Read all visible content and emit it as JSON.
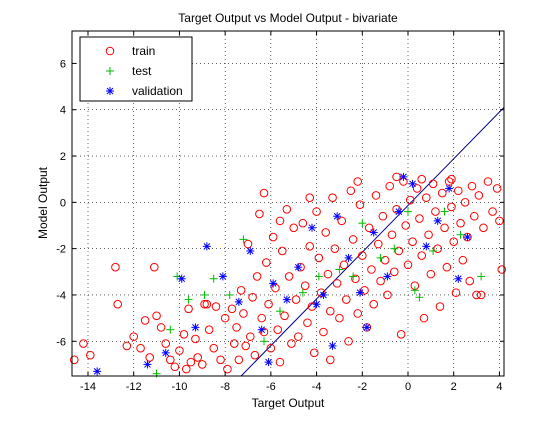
{
  "chart_data": {
    "type": "scatter",
    "title": "Target Output vs Model Output - bivariate",
    "xlabel": "Target Output",
    "ylabel": "Model Output",
    "xlim": [
      -14.7,
      4.2
    ],
    "ylim": [
      -7.5,
      7.4
    ],
    "x_ticks": [
      -14,
      -12,
      -10,
      -8,
      -6,
      -4,
      -2,
      0,
      2,
      4
    ],
    "y_ticks": [
      -6,
      -4,
      -2,
      0,
      2,
      4,
      6
    ],
    "x_tick_labels": [
      "-14",
      "-12",
      "-10",
      "-8",
      "-6",
      "-4",
      "-2",
      "0",
      "2",
      "4"
    ],
    "y_tick_labels": [
      "-6",
      "-4",
      "-2",
      "0",
      "2",
      "4",
      "6"
    ],
    "grid": true,
    "grid_style": "dotted",
    "legend_position": "top-left",
    "reference_line": {
      "from": [
        -7.3,
        -7.5
      ],
      "to": [
        4.2,
        4.1
      ],
      "color": "#00008b"
    },
    "series": [
      {
        "name": "train",
        "marker": "circle",
        "color": "#ff0000",
        "points": [
          [
            -14.6,
            -6.8
          ],
          [
            -14.2,
            -6.1
          ],
          [
            -13.9,
            -6.6
          ],
          [
            -12.8,
            -2.8
          ],
          [
            -12.7,
            -4.4
          ],
          [
            -12.3,
            -6.2
          ],
          [
            -12.0,
            -5.8
          ],
          [
            -11.7,
            -6.3
          ],
          [
            -11.5,
            -5.1
          ],
          [
            -11.3,
            -6.7
          ],
          [
            -11.1,
            -2.8
          ],
          [
            -11.0,
            -4.9
          ],
          [
            -10.8,
            -5.4
          ],
          [
            -10.6,
            -6.1
          ],
          [
            -10.4,
            -6.8
          ],
          [
            -10.2,
            -7.1
          ],
          [
            -10.0,
            -6.4
          ],
          [
            -9.8,
            -5.7
          ],
          [
            -9.7,
            -7.2
          ],
          [
            -9.5,
            -6.9
          ],
          [
            -9.3,
            -5.9
          ],
          [
            -9.2,
            -6.7
          ],
          [
            -9.0,
            -7.0
          ],
          [
            -8.8,
            -4.4
          ],
          [
            -8.7,
            -5.5
          ],
          [
            -8.5,
            -6.3
          ],
          [
            -8.4,
            -4.5
          ],
          [
            -8.2,
            -6.8
          ],
          [
            -8.0,
            -5.0
          ],
          [
            -7.9,
            -7.2
          ],
          [
            -7.7,
            -4.6
          ],
          [
            -7.6,
            -6.1
          ],
          [
            -7.5,
            -5.4
          ],
          [
            -7.4,
            -6.8
          ],
          [
            -7.3,
            -3.8
          ],
          [
            -7.2,
            -4.8
          ],
          [
            -7.1,
            -6.2
          ],
          [
            -7.0,
            -1.8
          ],
          [
            -6.9,
            -5.8
          ],
          [
            -6.8,
            -4.1
          ],
          [
            -6.7,
            -6.6
          ],
          [
            -6.6,
            -3.2
          ],
          [
            -6.5,
            -0.5
          ],
          [
            -6.4,
            -5.0
          ],
          [
            -6.3,
            0.4
          ],
          [
            -6.2,
            -2.6
          ],
          [
            -6.1,
            -4.4
          ],
          [
            -6.0,
            -6.3
          ],
          [
            -5.9,
            -1.5
          ],
          [
            -5.8,
            -3.7
          ],
          [
            -5.7,
            -5.5
          ],
          [
            -5.6,
            -6.9
          ],
          [
            -5.5,
            -2.1
          ],
          [
            -5.4,
            -4.9
          ],
          [
            -5.3,
            -0.3
          ],
          [
            -5.2,
            -3.2
          ],
          [
            -5.1,
            -6.1
          ],
          [
            -5.0,
            -1.1
          ],
          [
            -4.9,
            -4.2
          ],
          [
            -4.8,
            -5.8
          ],
          [
            -4.7,
            -2.8
          ],
          [
            -4.6,
            -0.9
          ],
          [
            -4.5,
            -3.6
          ],
          [
            -4.4,
            -5.2
          ],
          [
            -4.3,
            -1.9
          ],
          [
            -4.2,
            -4.5
          ],
          [
            -4.1,
            -6.5
          ],
          [
            -4.0,
            -0.4
          ],
          [
            -3.9,
            -2.4
          ],
          [
            -3.8,
            -3.9
          ],
          [
            -3.7,
            -5.6
          ],
          [
            -3.6,
            -1.3
          ],
          [
            -3.5,
            -3.1
          ],
          [
            -3.4,
            -4.7
          ],
          [
            -3.3,
            0.2
          ],
          [
            -3.2,
            -2.0
          ],
          [
            -3.1,
            -3.5
          ],
          [
            -3.0,
            -5.0
          ],
          [
            -2.9,
            -0.8
          ],
          [
            -2.8,
            -2.7
          ],
          [
            -2.7,
            -4.2
          ],
          [
            -2.6,
            -6.0
          ],
          [
            -2.5,
            0.5
          ],
          [
            -2.4,
            -1.6
          ],
          [
            -2.3,
            -3.3
          ],
          [
            -2.2,
            -4.8
          ],
          [
            -2.1,
            -0.1
          ],
          [
            -2.0,
            -2.3
          ],
          [
            -1.9,
            -3.8
          ],
          [
            -1.8,
            -5.4
          ],
          [
            -1.7,
            -1.1
          ],
          [
            -1.6,
            -2.9
          ],
          [
            -1.5,
            -4.4
          ],
          [
            -1.4,
            0.3
          ],
          [
            -1.3,
            -1.8
          ],
          [
            -1.2,
            -3.4
          ],
          [
            -1.1,
            -0.6
          ],
          [
            -1.0,
            -2.5
          ],
          [
            -0.9,
            -4.0
          ],
          [
            -0.8,
            0.7
          ],
          [
            -0.7,
            -1.4
          ],
          [
            -0.6,
            -3.0
          ],
          [
            -0.5,
            -0.3
          ],
          [
            -0.4,
            -2.1
          ],
          [
            -0.3,
            -5.7
          ],
          [
            -0.2,
            0.9
          ],
          [
            -0.1,
            -1.0
          ],
          [
            0.0,
            -2.7
          ],
          [
            0.1,
            0.1
          ],
          [
            0.2,
            -1.7
          ],
          [
            0.3,
            -3.6
          ],
          [
            0.4,
            0.6
          ],
          [
            0.5,
            -0.7
          ],
          [
            0.6,
            -2.3
          ],
          [
            0.7,
            -5.0
          ],
          [
            0.8,
            0.2
          ],
          [
            0.9,
            -1.4
          ],
          [
            1.0,
            -3.1
          ],
          [
            1.1,
            0.8
          ],
          [
            1.2,
            -0.4
          ],
          [
            1.3,
            -2.0
          ],
          [
            1.4,
            -4.5
          ],
          [
            1.5,
            0.4
          ],
          [
            1.6,
            -1.1
          ],
          [
            1.7,
            -2.8
          ],
          [
            1.8,
            0.9
          ],
          [
            1.9,
            -0.2
          ],
          [
            2.0,
            -1.7
          ],
          [
            2.1,
            -3.9
          ],
          [
            2.2,
            0.5
          ],
          [
            2.3,
            -0.9
          ],
          [
            2.4,
            -2.5
          ],
          [
            2.5,
            0.0
          ],
          [
            2.6,
            -1.5
          ],
          [
            2.7,
            -3.4
          ],
          [
            2.8,
            0.7
          ],
          [
            2.9,
            -0.6
          ],
          [
            3.0,
            -4.0
          ],
          [
            3.1,
            0.3
          ],
          [
            3.2,
            -4.0
          ],
          [
            3.3,
            -1.1
          ],
          [
            3.5,
            0.9
          ],
          [
            3.7,
            -0.4
          ],
          [
            3.9,
            0.6
          ],
          [
            4.0,
            -0.8
          ],
          [
            4.1,
            -2.9
          ],
          [
            -9.6,
            -4.6
          ],
          [
            -8.9,
            -4.4
          ],
          [
            -6.3,
            -5.6
          ],
          [
            -3.4,
            -6.8
          ],
          [
            -5.6,
            -0.8
          ],
          [
            -4.3,
            0.2
          ],
          [
            -2.2,
            0.9
          ],
          [
            -0.5,
            1.1
          ],
          [
            0.6,
            1.0
          ],
          [
            1.9,
            1.0
          ]
        ]
      },
      {
        "name": "test",
        "marker": "plus",
        "color": "#00bb00",
        "points": [
          [
            -11.0,
            -7.4
          ],
          [
            -10.4,
            -5.5
          ],
          [
            -10.1,
            -3.2
          ],
          [
            -9.6,
            -4.2
          ],
          [
            -8.9,
            -4.0
          ],
          [
            -8.5,
            -3.3
          ],
          [
            -7.8,
            -4.0
          ],
          [
            -7.2,
            -1.6
          ],
          [
            -6.3,
            -6.0
          ],
          [
            -5.6,
            -4.7
          ],
          [
            -4.6,
            -3.9
          ],
          [
            -3.9,
            -3.2
          ],
          [
            -3.0,
            -2.9
          ],
          [
            -2.4,
            -3.2
          ],
          [
            -1.2,
            -2.4
          ],
          [
            -0.6,
            -2.0
          ],
          [
            0.0,
            -0.4
          ],
          [
            0.5,
            -4.1
          ],
          [
            1.1,
            -2.1
          ],
          [
            1.6,
            -0.4
          ],
          [
            2.3,
            -1.4
          ],
          [
            3.2,
            -3.2
          ],
          [
            0.3,
            -3.8
          ],
          [
            -2.0,
            -0.9
          ]
        ]
      },
      {
        "name": "validation",
        "marker": "star",
        "color": "#0000ff",
        "points": [
          [
            -13.6,
            -7.3
          ],
          [
            -11.4,
            -7.0
          ],
          [
            -10.6,
            -6.5
          ],
          [
            -9.9,
            -3.3
          ],
          [
            -9.3,
            -5.4
          ],
          [
            -8.8,
            -1.9
          ],
          [
            -8.1,
            -3.2
          ],
          [
            -7.4,
            -4.3
          ],
          [
            -6.9,
            -2.1
          ],
          [
            -6.4,
            -5.5
          ],
          [
            -5.9,
            -3.5
          ],
          [
            -5.3,
            -4.2
          ],
          [
            -4.8,
            -2.8
          ],
          [
            -4.2,
            -1.1
          ],
          [
            -3.7,
            -4.0
          ],
          [
            -3.1,
            -0.6
          ],
          [
            -2.6,
            -2.4
          ],
          [
            -2.1,
            -3.9
          ],
          [
            -1.5,
            -1.3
          ],
          [
            -0.9,
            -3.2
          ],
          [
            -0.4,
            -0.4
          ],
          [
            0.2,
            0.8
          ],
          [
            0.8,
            -1.9
          ],
          [
            1.3,
            -0.8
          ],
          [
            1.8,
            0.6
          ],
          [
            2.2,
            -3.3
          ],
          [
            2.6,
            -1.5
          ],
          [
            -6.1,
            -6.9
          ],
          [
            -3.3,
            -6.2
          ],
          [
            -1.8,
            -5.4
          ],
          [
            -0.2,
            1.1
          ],
          [
            -4.0,
            -4.4
          ]
        ]
      }
    ]
  }
}
